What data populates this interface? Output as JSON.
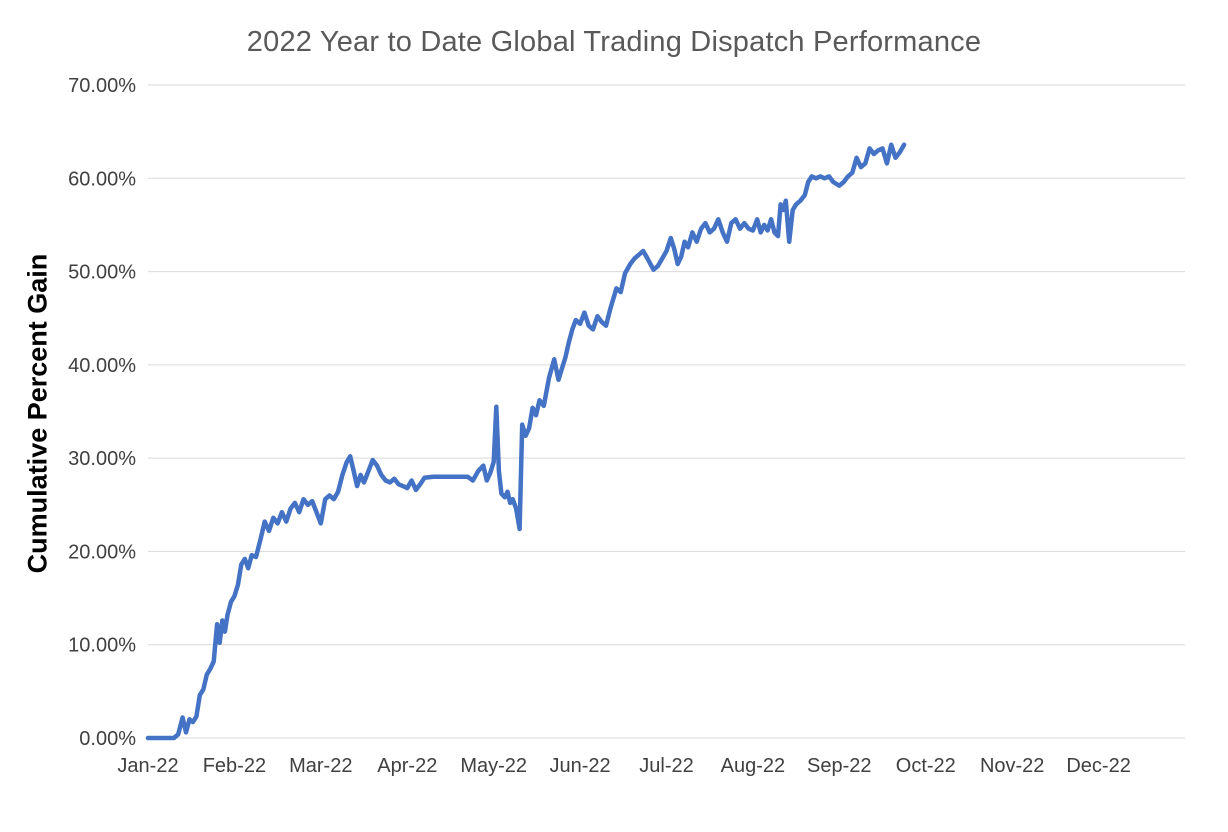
{
  "chart_data": {
    "type": "line",
    "title": "2022 Year to Date Global Trading Dispatch Performance",
    "ylabel": "Cumulative Percent Gain",
    "xlabel": "",
    "x_tick_labels": [
      "Jan-22",
      "Feb-22",
      "Mar-22",
      "Apr-22",
      "May-22",
      "Jun-22",
      "Jul-22",
      "Aug-22",
      "Sep-22",
      "Oct-22",
      "Nov-22",
      "Dec-22"
    ],
    "y_ticks": [
      0,
      10,
      20,
      30,
      40,
      50,
      60,
      70
    ],
    "y_tick_labels": [
      "0.00%",
      "10.00%",
      "20.00%",
      "30.00%",
      "40.00%",
      "50.00%",
      "60.00%",
      "70.00%"
    ],
    "ylim": [
      0,
      70
    ],
    "xlim": [
      0,
      12
    ],
    "grid": true,
    "legend_position": "none",
    "line_color": "#4472C4",
    "grid_color": "#D9D9D9",
    "tick_color": "#404040",
    "title_color": "#595959",
    "series": [
      {
        "name": "Cumulative Percent Gain",
        "points": [
          [
            0.0,
            0.0
          ],
          [
            0.1,
            0.0
          ],
          [
            0.2,
            0.0
          ],
          [
            0.3,
            0.0
          ],
          [
            0.35,
            0.4
          ],
          [
            0.4,
            2.2
          ],
          [
            0.44,
            0.6
          ],
          [
            0.48,
            2.0
          ],
          [
            0.52,
            1.7
          ],
          [
            0.56,
            2.3
          ],
          [
            0.6,
            4.6
          ],
          [
            0.64,
            5.2
          ],
          [
            0.68,
            6.8
          ],
          [
            0.72,
            7.4
          ],
          [
            0.76,
            8.2
          ],
          [
            0.8,
            12.2
          ],
          [
            0.83,
            10.2
          ],
          [
            0.86,
            12.6
          ],
          [
            0.89,
            11.4
          ],
          [
            0.92,
            13.2
          ],
          [
            0.96,
            14.6
          ],
          [
            1.0,
            15.2
          ],
          [
            1.04,
            16.4
          ],
          [
            1.08,
            18.6
          ],
          [
            1.12,
            19.2
          ],
          [
            1.16,
            18.2
          ],
          [
            1.2,
            19.6
          ],
          [
            1.25,
            19.4
          ],
          [
            1.3,
            21.2
          ],
          [
            1.35,
            23.2
          ],
          [
            1.4,
            22.2
          ],
          [
            1.45,
            23.6
          ],
          [
            1.5,
            23.0
          ],
          [
            1.55,
            24.2
          ],
          [
            1.6,
            23.2
          ],
          [
            1.65,
            24.6
          ],
          [
            1.7,
            25.2
          ],
          [
            1.75,
            24.2
          ],
          [
            1.8,
            25.6
          ],
          [
            1.85,
            25.0
          ],
          [
            1.9,
            25.4
          ],
          [
            1.95,
            24.2
          ],
          [
            2.0,
            23.0
          ],
          [
            2.05,
            25.6
          ],
          [
            2.1,
            26.0
          ],
          [
            2.15,
            25.6
          ],
          [
            2.2,
            26.4
          ],
          [
            2.25,
            28.2
          ],
          [
            2.3,
            29.6
          ],
          [
            2.34,
            30.2
          ],
          [
            2.38,
            28.6
          ],
          [
            2.42,
            27.0
          ],
          [
            2.46,
            28.2
          ],
          [
            2.5,
            27.4
          ],
          [
            2.55,
            28.6
          ],
          [
            2.6,
            29.8
          ],
          [
            2.65,
            29.2
          ],
          [
            2.7,
            28.2
          ],
          [
            2.75,
            27.6
          ],
          [
            2.8,
            27.4
          ],
          [
            2.85,
            27.8
          ],
          [
            2.9,
            27.2
          ],
          [
            2.95,
            27.0
          ],
          [
            3.0,
            26.8
          ],
          [
            3.05,
            27.6
          ],
          [
            3.1,
            26.6
          ],
          [
            3.15,
            27.2
          ],
          [
            3.2,
            27.9
          ],
          [
            3.3,
            28.0
          ],
          [
            3.4,
            28.0
          ],
          [
            3.5,
            28.0
          ],
          [
            3.6,
            28.0
          ],
          [
            3.7,
            28.0
          ],
          [
            3.76,
            27.6
          ],
          [
            3.82,
            28.6
          ],
          [
            3.88,
            29.2
          ],
          [
            3.92,
            27.6
          ],
          [
            3.96,
            28.4
          ],
          [
            4.0,
            29.6
          ],
          [
            4.03,
            35.5
          ],
          [
            4.06,
            28.6
          ],
          [
            4.09,
            26.2
          ],
          [
            4.13,
            25.8
          ],
          [
            4.16,
            26.4
          ],
          [
            4.19,
            25.2
          ],
          [
            4.22,
            25.6
          ],
          [
            4.26,
            24.6
          ],
          [
            4.3,
            22.4
          ],
          [
            4.33,
            33.6
          ],
          [
            4.37,
            32.4
          ],
          [
            4.41,
            33.2
          ],
          [
            4.45,
            35.4
          ],
          [
            4.49,
            34.6
          ],
          [
            4.53,
            36.2
          ],
          [
            4.58,
            35.6
          ],
          [
            4.64,
            38.6
          ],
          [
            4.7,
            40.6
          ],
          [
            4.75,
            38.4
          ],
          [
            4.79,
            39.6
          ],
          [
            4.83,
            40.8
          ],
          [
            4.87,
            42.4
          ],
          [
            4.91,
            43.8
          ],
          [
            4.95,
            44.8
          ],
          [
            5.0,
            44.4
          ],
          [
            5.05,
            45.6
          ],
          [
            5.1,
            44.2
          ],
          [
            5.15,
            43.8
          ],
          [
            5.2,
            45.2
          ],
          [
            5.25,
            44.6
          ],
          [
            5.3,
            44.2
          ],
          [
            5.35,
            46.0
          ],
          [
            5.42,
            48.2
          ],
          [
            5.47,
            47.8
          ],
          [
            5.52,
            49.8
          ],
          [
            5.58,
            50.8
          ],
          [
            5.63,
            51.4
          ],
          [
            5.68,
            51.8
          ],
          [
            5.73,
            52.2
          ],
          [
            5.78,
            51.4
          ],
          [
            5.85,
            50.2
          ],
          [
            5.9,
            50.6
          ],
          [
            5.95,
            51.4
          ],
          [
            6.0,
            52.2
          ],
          [
            6.05,
            53.6
          ],
          [
            6.09,
            52.4
          ],
          [
            6.13,
            50.8
          ],
          [
            6.17,
            51.6
          ],
          [
            6.21,
            53.2
          ],
          [
            6.25,
            52.6
          ],
          [
            6.3,
            54.2
          ],
          [
            6.35,
            53.2
          ],
          [
            6.4,
            54.6
          ],
          [
            6.45,
            55.2
          ],
          [
            6.5,
            54.2
          ],
          [
            6.55,
            54.6
          ],
          [
            6.6,
            55.6
          ],
          [
            6.65,
            54.2
          ],
          [
            6.7,
            53.2
          ],
          [
            6.75,
            55.2
          ],
          [
            6.8,
            55.6
          ],
          [
            6.85,
            54.6
          ],
          [
            6.9,
            55.2
          ],
          [
            6.95,
            54.6
          ],
          [
            7.0,
            54.4
          ],
          [
            7.05,
            55.6
          ],
          [
            7.09,
            54.2
          ],
          [
            7.13,
            55.0
          ],
          [
            7.17,
            54.4
          ],
          [
            7.21,
            55.6
          ],
          [
            7.25,
            54.2
          ],
          [
            7.29,
            53.8
          ],
          [
            7.32,
            57.2
          ],
          [
            7.35,
            56.6
          ],
          [
            7.38,
            57.6
          ],
          [
            7.42,
            53.2
          ],
          [
            7.46,
            56.6
          ],
          [
            7.5,
            57.2
          ],
          [
            7.55,
            57.6
          ],
          [
            7.6,
            58.2
          ],
          [
            7.64,
            59.6
          ],
          [
            7.68,
            60.2
          ],
          [
            7.73,
            60.0
          ],
          [
            7.78,
            60.2
          ],
          [
            7.83,
            60.0
          ],
          [
            7.88,
            60.2
          ],
          [
            7.93,
            59.6
          ],
          [
            8.0,
            59.2
          ],
          [
            8.05,
            59.6
          ],
          [
            8.1,
            60.2
          ],
          [
            8.15,
            60.6
          ],
          [
            8.2,
            62.2
          ],
          [
            8.25,
            61.2
          ],
          [
            8.3,
            61.6
          ],
          [
            8.35,
            63.2
          ],
          [
            8.4,
            62.6
          ],
          [
            8.45,
            63.0
          ],
          [
            8.5,
            63.2
          ],
          [
            8.55,
            61.6
          ],
          [
            8.6,
            63.6
          ],
          [
            8.65,
            62.2
          ],
          [
            8.7,
            62.8
          ],
          [
            8.75,
            63.6
          ]
        ]
      }
    ]
  }
}
